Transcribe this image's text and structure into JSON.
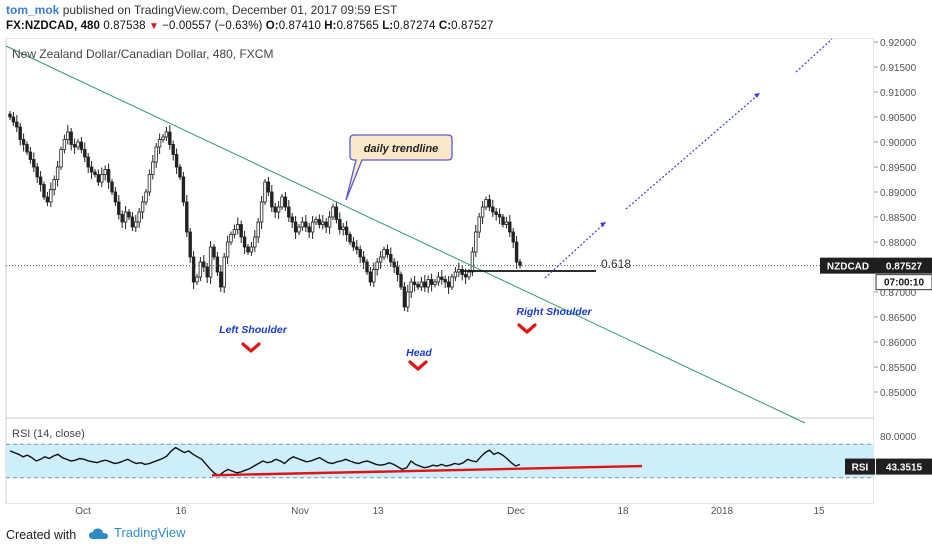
{
  "header": {
    "author": "tom_mok",
    "published": "published on TradingView.com, December 01, 2017 09:59 EST",
    "symbol": "FX:NZDCAD, 480",
    "last": "0.87538",
    "change": "−0.00557 (−0.63%)",
    "ohlc": {
      "o": "0.87410",
      "h": "0.87565",
      "l": "0.87274",
      "c": "0.87527"
    },
    "labels": {
      "o": "O:",
      "h": "H:",
      "l": "L:",
      "c": "C:"
    }
  },
  "footer": {
    "created": "Created with",
    "brand": "TradingView"
  },
  "chart_data": {
    "type": "candlestick",
    "title": "New Zealand Dollar/Canadian Dollar, 480, FXCM",
    "price_axis": {
      "min": 0.845,
      "max": 0.92,
      "ticks": [
        "0.92000",
        "0.91500",
        "0.91000",
        "0.90500",
        "0.90000",
        "0.89500",
        "0.89000",
        "0.88500",
        "0.88000",
        "0.87500",
        "0.87000",
        "0.86500",
        "0.86000",
        "0.85500",
        "0.85000"
      ]
    },
    "time_axis": [
      "Oct",
      "16",
      "Nov",
      "13",
      "Dec",
      "18",
      "2018",
      "15"
    ],
    "price_tag": {
      "symbol": "NZDCAD",
      "value": "0.87527",
      "countdown": "07:00:10"
    },
    "last_price": 0.87527,
    "candles_close": [
      0.905,
      0.904,
      0.903,
      0.9005,
      0.8995,
      0.898,
      0.8965,
      0.895,
      0.893,
      0.8915,
      0.889,
      0.888,
      0.8905,
      0.8925,
      0.895,
      0.8985,
      0.9005,
      0.902,
      0.8995,
      0.899,
      0.9,
      0.8985,
      0.897,
      0.895,
      0.894,
      0.8935,
      0.892,
      0.8935,
      0.8945,
      0.892,
      0.89,
      0.888,
      0.8855,
      0.884,
      0.886,
      0.885,
      0.883,
      0.884,
      0.886,
      0.888,
      0.89,
      0.8935,
      0.896,
      0.899,
      0.9005,
      0.901,
      0.902,
      0.8995,
      0.8975,
      0.895,
      0.893,
      0.888,
      0.882,
      0.877,
      0.872,
      0.873,
      0.876,
      0.875,
      0.873,
      0.879,
      0.877,
      0.874,
      0.871,
      0.877,
      0.88,
      0.8815,
      0.8825,
      0.8835,
      0.881,
      0.879,
      0.878,
      0.879,
      0.881,
      0.884,
      0.888,
      0.892,
      0.89,
      0.887,
      0.886,
      0.887,
      0.889,
      0.887,
      0.885,
      0.884,
      0.882,
      0.883,
      0.884,
      0.883,
      0.882,
      0.884,
      0.8845,
      0.8835,
      0.884,
      0.883,
      0.885,
      0.887,
      0.8845,
      0.8825,
      0.883,
      0.8815,
      0.88,
      0.879,
      0.8785,
      0.877,
      0.876,
      0.874,
      0.872,
      0.8745,
      0.876,
      0.877,
      0.8785,
      0.8775,
      0.876,
      0.875,
      0.8735,
      0.871,
      0.867,
      0.87,
      0.872,
      0.8715,
      0.871,
      0.872,
      0.871,
      0.8725,
      0.8715,
      0.872,
      0.873,
      0.8725,
      0.872,
      0.871,
      0.873,
      0.874,
      0.8745,
      0.8735,
      0.873,
      0.874,
      0.878,
      0.882,
      0.885,
      0.887,
      0.8885,
      0.887,
      0.886,
      0.8855,
      0.885,
      0.8835,
      0.884,
      0.882,
      0.88,
      0.876,
      0.8753
    ],
    "annotations": {
      "trendline_label": "daily trendline",
      "fib_label": "0.618",
      "fib_level": 0.8742,
      "left_shoulder": "Left Shoulder",
      "head": "Head",
      "right_shoulder": "Right Shoulder"
    },
    "rsi": {
      "title": "RSI (14, close)",
      "value": "43.3515",
      "ticks": [
        "80.0000"
      ],
      "label": "RSI",
      "band": [
        30,
        70
      ],
      "values": [
        62,
        60,
        58,
        55,
        57,
        54,
        50,
        52,
        55,
        53,
        56,
        58,
        54,
        52,
        50,
        51,
        53,
        52,
        50,
        49,
        48,
        50,
        51,
        49,
        47,
        48,
        50,
        52,
        49,
        47,
        48,
        46,
        47,
        49,
        51,
        53,
        56,
        62,
        66,
        63,
        60,
        62,
        58,
        55,
        52,
        46,
        40,
        35,
        33,
        37,
        40,
        38,
        36,
        37,
        39,
        41,
        44,
        47,
        50,
        48,
        49,
        52,
        50,
        47,
        52,
        55,
        53,
        51,
        49,
        50,
        52,
        54,
        51,
        48,
        47,
        49,
        50,
        52,
        50,
        48,
        47,
        49,
        50,
        48,
        46,
        45,
        46,
        48,
        46,
        43,
        40,
        42,
        50,
        46,
        44,
        42,
        43,
        45,
        44,
        46,
        44,
        45,
        47,
        46,
        48,
        52,
        50,
        49,
        55,
        60,
        63,
        58,
        60,
        57,
        53,
        48,
        44,
        46
      ]
    }
  }
}
